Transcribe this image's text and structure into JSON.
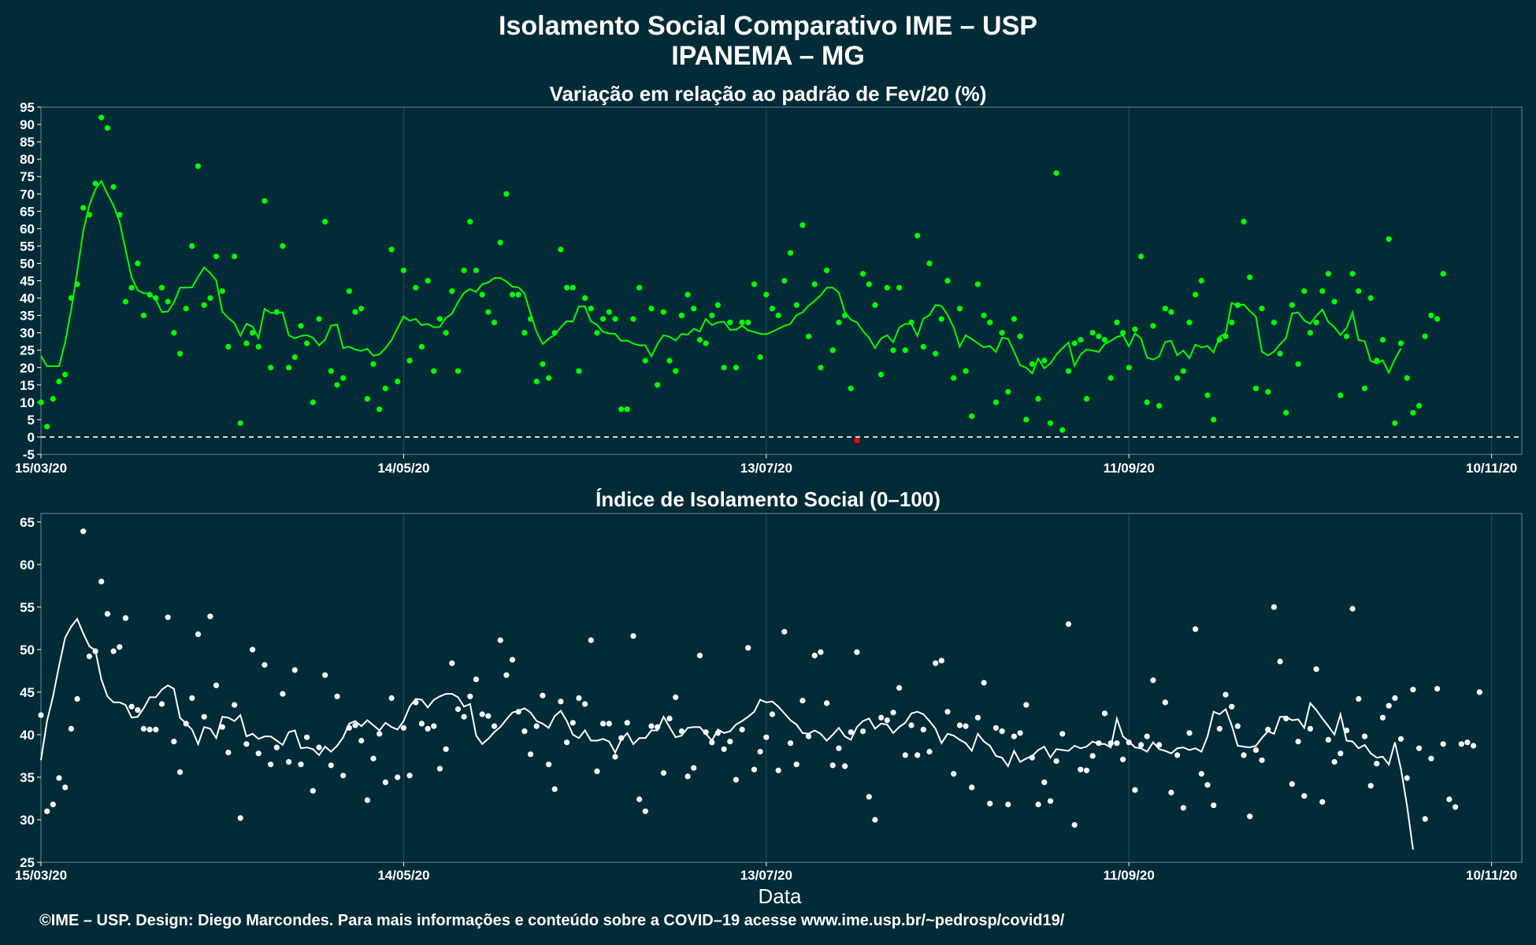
{
  "header": {
    "title_line1": "Isolamento Social Comparativo IME – USP",
    "title_line2": "IPANEMA – MG"
  },
  "footer": "©IME – USP. Design: Diego Marcondes. Para mais informações e conteúdo sobre a COVID–19 acesse www.ime.usp.br/~pedrosp/covid19/",
  "colors": {
    "background": "#022b38",
    "top_series": "#00ff00",
    "negative_point": "#ff0000",
    "bottom_series": "#ffffff",
    "grid": "#2b4a52"
  },
  "chart_data": [
    {
      "type": "scatter",
      "title": "Variação em relação ao padrão de Fev/20 (%)",
      "xlabel": "",
      "ylabel": "",
      "x_tick_labels": [
        "15/03/20",
        "14/05/20",
        "13/07/20",
        "11/09/20",
        "10/11/20"
      ],
      "x_tick_days": [
        0,
        60,
        120,
        180,
        240
      ],
      "y_ticks": [
        -5,
        0,
        5,
        10,
        15,
        20,
        25,
        30,
        35,
        40,
        45,
        50,
        55,
        60,
        65,
        70,
        75,
        80,
        85,
        90,
        95
      ],
      "ylim": [
        -5,
        95
      ],
      "xlim_days": [
        0,
        245
      ],
      "reference_line": 0,
      "grid": true,
      "series": [
        {
          "kind": "points",
          "x_start": "15/03/20",
          "values": [
            10,
            3,
            11,
            16,
            18,
            40,
            44,
            66,
            64,
            73,
            92,
            89,
            72,
            64,
            39,
            43,
            50,
            35,
            41,
            40,
            43,
            39,
            30,
            24,
            37,
            55,
            78,
            38,
            40,
            52,
            42,
            26,
            52,
            4,
            27,
            30,
            26,
            68,
            20,
            36,
            55,
            20,
            23,
            32,
            27,
            10,
            34,
            62,
            19,
            15,
            17,
            42,
            36,
            37,
            11,
            21,
            8,
            14,
            54,
            16,
            48,
            22,
            43,
            26,
            45,
            19,
            34,
            30,
            42,
            19,
            48,
            62,
            48,
            41,
            36,
            33,
            56,
            70,
            41,
            41,
            30,
            34,
            16,
            21,
            17,
            30,
            54,
            43,
            43,
            19,
            40,
            37,
            30,
            34,
            36,
            34,
            8,
            8,
            34,
            43,
            22,
            37,
            15,
            36,
            22,
            19,
            35,
            41,
            37,
            28,
            27,
            35,
            38,
            20,
            33,
            20,
            33,
            33,
            44,
            23,
            41,
            37,
            35,
            45,
            53,
            38,
            61,
            29,
            44,
            20,
            48,
            25,
            33,
            35,
            14,
            -1,
            47,
            44,
            38,
            18,
            43,
            25,
            43,
            25,
            33,
            58,
            26,
            50,
            24,
            34,
            45,
            17,
            37,
            19,
            6,
            44,
            35,
            33,
            10,
            30,
            13,
            34,
            29,
            5,
            21,
            11,
            22,
            4,
            76,
            2,
            19,
            27,
            28,
            11,
            30,
            29,
            28,
            17,
            33,
            30,
            20,
            31,
            52,
            10,
            32,
            9,
            37,
            36,
            17,
            19,
            33,
            41,
            45,
            12,
            5,
            28,
            29,
            33,
            38,
            62,
            46,
            14,
            37,
            13,
            33,
            24,
            7,
            38,
            21,
            42,
            30,
            33,
            42,
            47,
            39,
            12,
            29,
            47,
            42,
            14,
            40,
            22,
            28,
            57,
            4,
            27,
            17,
            7,
            9,
            29,
            35,
            34,
            47
          ]
        },
        {
          "kind": "moving_average_line",
          "x_start": "15/03/20",
          "values": [
            23.4,
            20.4,
            20.4,
            20.4,
            27.3,
            36.6,
            47.5,
            59.3,
            66.7,
            71.3,
            73.7,
            70.0,
            66.7,
            62.0,
            54.0,
            46.0,
            42.3,
            41.4,
            41.3,
            39.6,
            36.0,
            36.1,
            38.7,
            43.0,
            43.0,
            43.1,
            46.1,
            48.8,
            47.2,
            45.1,
            36.1,
            34.3,
            32.8,
            29.2,
            32.6,
            31.8,
            28.5,
            36.9,
            35.8,
            35.7,
            35.9,
            29.3,
            28.4,
            29.1,
            29.3,
            28.6,
            26.4,
            28.0,
            32.0,
            32.4,
            25.6,
            26.0,
            25.2,
            24.8,
            25.4,
            23.4,
            23.8,
            25.6,
            27.9,
            31.3,
            34.7,
            33.5,
            34.0,
            32.2,
            32.6,
            31.6,
            31.7,
            34.3,
            35.5,
            38.8,
            41.5,
            42.6,
            41.8,
            44.0,
            44.5,
            45.8,
            45.8,
            44.8,
            43.3,
            43.1,
            41.4,
            35.5,
            30.3,
            26.8,
            28.3,
            29.4,
            31.6,
            33.4,
            33.2,
            37.6,
            37.6,
            33.3,
            32.3,
            30.3,
            29.8,
            29.7,
            27.7,
            27.8,
            26.9,
            26.4,
            26.4,
            23.2,
            26.8,
            29.3,
            28.9,
            27.8,
            29.7,
            29.5,
            31.2,
            30.4,
            34.0,
            32.2,
            33.0,
            33.2,
            30.9,
            30.9,
            32.1,
            30.7,
            30.3,
            29.7,
            29.6,
            30.3,
            31.2,
            32.0,
            32.6,
            35.1,
            35.9,
            37.8,
            39.2,
            40.8,
            43.0,
            43.0,
            41.6,
            36.0,
            33.8,
            33.0,
            30.5,
            28.6,
            25.6,
            28.4,
            29.3,
            27.3,
            31.5,
            32.6,
            32.6,
            29.1,
            34.1,
            35.1,
            38.0,
            37.7,
            35.2,
            31.6,
            26.0,
            29.3,
            28.2,
            27.0,
            25.8,
            26.2,
            24.5,
            28.6,
            28.3,
            24.6,
            20.7,
            20.0,
            18.3,
            22.6,
            19.8,
            21.2,
            23.7,
            25.6,
            27.2,
            20.5,
            23.7,
            25.2,
            24.9,
            24.5,
            26.8,
            27.7,
            28.8,
            29.3,
            26.1,
            29.8,
            28.4,
            22.9,
            22.3,
            23.2,
            27.4,
            27.7,
            23.5,
            24.9,
            22.7,
            26.6,
            25.8,
            26.2,
            24.4,
            28.9,
            29.8,
            38.6,
            37.8,
            38.2,
            36.3,
            34.7,
            24.6,
            23.5,
            24.6,
            26.7,
            28.5,
            35.6,
            35.9,
            33.6,
            32.6,
            34.9,
            36.7,
            33.1,
            31.6,
            29.4,
            31.4,
            35.9,
            27.9,
            27.6,
            21.9,
            21.2,
            22.1,
            18.5,
            22.4,
            25.5
          ]
        }
      ]
    },
    {
      "type": "scatter",
      "title": "Índice de Isolamento Social (0–100)",
      "xlabel": "Data",
      "ylabel": "",
      "x_tick_labels": [
        "15/03/20",
        "14/05/20",
        "13/07/20",
        "11/09/20",
        "10/11/20"
      ],
      "x_tick_days": [
        0,
        60,
        120,
        180,
        240
      ],
      "y_ticks": [
        25,
        30,
        35,
        40,
        45,
        50,
        55,
        60,
        65
      ],
      "ylim": [
        25,
        66
      ],
      "xlim_days": [
        0,
        245
      ],
      "grid": true,
      "series": [
        {
          "kind": "points",
          "x_start": "15/03/20",
          "values": [
            42.3,
            31.0,
            31.8,
            34.9,
            33.8,
            40.7,
            44.2,
            63.9,
            49.2,
            49.8,
            58.0,
            54.2,
            49.8,
            50.3,
            53.7,
            43.3,
            42.9,
            40.7,
            40.6,
            40.6,
            43.6,
            53.8,
            39.2,
            35.6,
            41.3,
            44.3,
            51.8,
            42.1,
            53.9,
            45.8,
            40.9,
            37.9,
            43.5,
            30.2,
            38.9,
            50.0,
            37.8,
            48.2,
            36.5,
            38.5,
            44.8,
            36.8,
            47.6,
            36.5,
            39.7,
            33.4,
            38.5,
            47.0,
            36.4,
            44.5,
            35.2,
            40.8,
            41.1,
            39.3,
            32.3,
            37.2,
            40.1,
            34.4,
            44.3,
            35.0,
            40.8,
            35.2,
            43.8,
            41.3,
            40.7,
            41.0,
            36.0,
            38.3,
            48.4,
            43.0,
            42.1,
            44.5,
            46.5,
            42.4,
            42.2,
            41.0,
            51.1,
            47.0,
            48.8,
            42.7,
            40.4,
            37.7,
            41.0,
            44.6,
            36.5,
            33.6,
            43.9,
            39.1,
            41.4,
            44.3,
            43.6,
            51.1,
            35.7,
            41.3,
            41.3,
            37.4,
            39.6,
            41.4,
            51.6,
            32.4,
            31.0,
            41.0,
            40.9,
            35.5,
            41.9,
            44.4,
            40.4,
            35.1,
            36.1,
            49.3,
            40.3,
            39.1,
            40.2,
            38.3,
            39.2,
            34.7,
            40.6,
            50.2,
            35.9,
            38.0,
            39.7,
            42.4,
            35.8,
            52.1,
            39.0,
            36.5,
            44.0,
            39.8,
            49.3,
            49.7,
            43.7,
            36.4,
            38.4,
            36.3,
            40.3,
            49.7,
            40.4,
            32.7,
            30.0,
            42.0,
            41.7,
            42.6,
            45.5,
            37.6,
            41.1,
            37.6,
            40.6,
            38.0,
            48.4,
            48.7,
            42.7,
            35.4,
            41.1,
            41.0,
            33.8,
            42.0,
            46.1,
            31.9,
            40.8,
            40.4,
            31.8,
            39.8,
            40.2,
            43.5,
            37.3,
            31.8,
            34.4,
            32.2,
            36.9,
            40.1,
            53.0,
            29.4,
            35.9,
            35.8,
            37.5,
            39.0,
            42.5,
            39.0,
            39.0,
            37.1,
            39.1,
            33.5,
            38.8,
            39.8,
            46.4,
            38.8,
            43.8,
            33.2,
            37.6,
            31.4,
            40.2,
            52.4,
            35.4,
            34.1,
            31.7,
            40.7,
            44.7,
            43.3,
            41.0,
            37.6,
            30.4,
            38.2,
            37.0,
            40.6,
            55.0,
            48.6,
            41.9,
            34.2,
            39.2,
            32.8,
            40.7,
            47.7,
            32.1,
            39.4,
            36.8,
            37.8,
            40.5,
            54.8,
            44.2,
            39.8,
            34.0,
            36.6,
            42.0,
            43.4,
            44.3,
            39.5,
            34.9,
            45.3,
            38.4,
            30.1,
            37.2,
            45.4,
            38.9,
            32.4,
            31.5,
            38.9,
            39.1,
            38.7,
            45.0
          ]
        },
        {
          "kind": "moving_average_line",
          "x_start": "15/03/20",
          "values": [
            37.0,
            41.6,
            44.5,
            48.1,
            51.4,
            52.7,
            53.6,
            51.9,
            50.4,
            49.9,
            46.5,
            44.5,
            43.8,
            43.8,
            43.5,
            42.0,
            42.1,
            43.1,
            44.4,
            44.4,
            45.3,
            45.8,
            45.4,
            42.0,
            41.3,
            40.6,
            38.9,
            40.9,
            40.7,
            39.6,
            42.1,
            42.0,
            41.6,
            42.3,
            39.8,
            40.1,
            39.5,
            39.8,
            39.8,
            39.3,
            38.8,
            40.3,
            40.5,
            38.4,
            38.5,
            38.3,
            37.6,
            38.6,
            38.0,
            38.7,
            39.7,
            41.3,
            41.6,
            41.0,
            41.7,
            41.1,
            40.5,
            41.4,
            40.9,
            40.6,
            41.6,
            43.3,
            44.2,
            44.1,
            43.2,
            44.1,
            44.5,
            44.8,
            44.8,
            44.4,
            43.3,
            43.6,
            39.9,
            38.9,
            39.5,
            40.3,
            40.9,
            41.8,
            42.6,
            42.8,
            43.1,
            42.6,
            41.6,
            41.3,
            40.8,
            42.2,
            42.8,
            41.6,
            40.0,
            39.6,
            40.5,
            39.3,
            39.3,
            39.5,
            39.2,
            37.9,
            39.4,
            40.2,
            38.9,
            39.6,
            39.6,
            40.5,
            40.5,
            42.1,
            40.9,
            39.7,
            39.9,
            40.8,
            40.9,
            40.9,
            40.1,
            39.3,
            40.6,
            40.2,
            40.4,
            41.2,
            41.6,
            42.1,
            42.7,
            44.1,
            43.8,
            43.9,
            43.3,
            42.5,
            41.7,
            41.2,
            40.2,
            40.1,
            40.5,
            40.1,
            39.3,
            40.0,
            40.8,
            39.8,
            39.4,
            40.9,
            41.6,
            41.9,
            40.7,
            41.3,
            41.2,
            40.2,
            40.9,
            41.4,
            42.5,
            42.7,
            42.4,
            41.6,
            40.7,
            39.0,
            40.1,
            39.9,
            39.4,
            39.0,
            38.1,
            40.1,
            39.2,
            38.7,
            37.5,
            37.3,
            36.3,
            38.1,
            36.8,
            37.2,
            37.5,
            38.2,
            38.6,
            37.3,
            38.3,
            38.2,
            38.1,
            38.7,
            38.4,
            38.6,
            39.2,
            38.9,
            38.9,
            38.5,
            41.9,
            39.8,
            39.2,
            38.5,
            38.4,
            38.0,
            39.1,
            38.3,
            38.1,
            37.8,
            38.4,
            38.5,
            38.2,
            38.4,
            38.0,
            39.8,
            42.7,
            42.4,
            43.0,
            41.1,
            38.7,
            38.6,
            38.5,
            38.7,
            39.6,
            40.4,
            40.1,
            42.1,
            42.1,
            41.7,
            41.8,
            40.8,
            43.7,
            42.9,
            41.9,
            41.0,
            40.0,
            42.4,
            39.3,
            39.2,
            38.4,
            38.8,
            37.8,
            37.3,
            37.4,
            36.5,
            39.1,
            36.0,
            31.7,
            26.5
          ]
        }
      ]
    }
  ]
}
